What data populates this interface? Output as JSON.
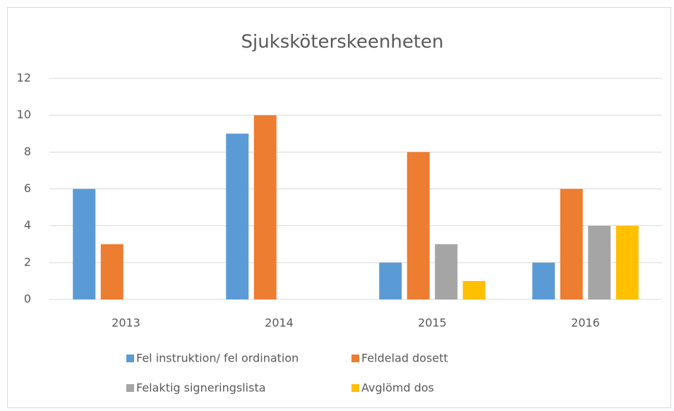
{
  "chart_data": {
    "type": "bar",
    "title": "Sjuksköterskeenheten",
    "categories": [
      "2013",
      "2014",
      "2015",
      "2016"
    ],
    "series": [
      {
        "name": "Fel instruktion/ fel ordination",
        "color": "#5b9bd5",
        "values": [
          6,
          9,
          2,
          2
        ]
      },
      {
        "name": "Feldelad dosett",
        "color": "#ed7d31",
        "values": [
          3,
          10,
          8,
          6
        ]
      },
      {
        "name": "Felaktig signeringslista",
        "color": "#a5a5a5",
        "values": [
          0,
          0,
          3,
          4
        ]
      },
      {
        "name": "Avglömd dos",
        "color": "#ffc000",
        "values": [
          0,
          0,
          1,
          4
        ]
      }
    ],
    "ylim": [
      0,
      12
    ],
    "yticks": [
      0,
      2,
      4,
      6,
      8,
      10,
      12
    ],
    "grid": true,
    "legend": "bottom"
  }
}
